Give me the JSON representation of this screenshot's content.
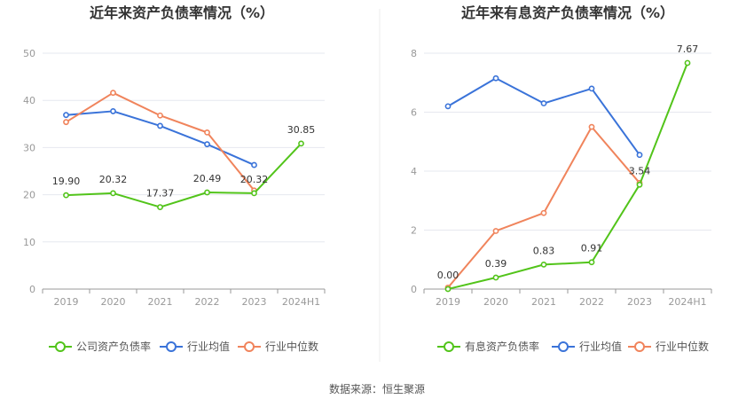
{
  "source": "数据来源：恒生聚源",
  "chart_data": [
    {
      "type": "line",
      "title": "近年来资产负债率情况（%）",
      "categories": [
        "2019",
        "2020",
        "2021",
        "2022",
        "2023",
        "2024H1"
      ],
      "ylim": [
        0,
        50
      ],
      "yticks": [
        0,
        10,
        20,
        30,
        40,
        50
      ],
      "grid": true,
      "legend_position": "bottom",
      "series": [
        {
          "name": "公司资产负债率",
          "color": "#52c41a",
          "values": [
            19.9,
            20.32,
            17.37,
            20.49,
            20.32,
            30.85
          ],
          "labels": [
            "19.90",
            "20.32",
            "17.37",
            "20.49",
            "20.32",
            "30.85"
          ]
        },
        {
          "name": "行业均值",
          "color": "#3a73d9",
          "values": [
            36.9,
            37.7,
            34.6,
            30.7,
            26.3,
            null
          ]
        },
        {
          "name": "行业中位数",
          "color": "#f0845c",
          "values": [
            35.4,
            41.6,
            36.8,
            33.2,
            20.9,
            null
          ]
        }
      ]
    },
    {
      "type": "line",
      "title": "近年来有息资产负债率情况（%）",
      "categories": [
        "2019",
        "2020",
        "2021",
        "2022",
        "2023",
        "2024H1"
      ],
      "ylim": [
        0,
        8
      ],
      "yticks": [
        0,
        2,
        4,
        6,
        8
      ],
      "grid": true,
      "legend_position": "bottom",
      "series": [
        {
          "name": "有息资产负债率",
          "color": "#52c41a",
          "values": [
            0.0,
            0.39,
            0.83,
            0.91,
            3.54,
            7.67
          ],
          "labels": [
            "0.00",
            "0.39",
            "0.83",
            "0.91",
            "3.54",
            "7.67"
          ]
        },
        {
          "name": "行业均值",
          "color": "#3a73d9",
          "values": [
            6.2,
            7.15,
            6.3,
            6.8,
            4.55,
            null
          ]
        },
        {
          "name": "行业中位数",
          "color": "#f0845c",
          "values": [
            0.05,
            1.97,
            2.58,
            5.5,
            3.6,
            null
          ]
        }
      ]
    }
  ]
}
